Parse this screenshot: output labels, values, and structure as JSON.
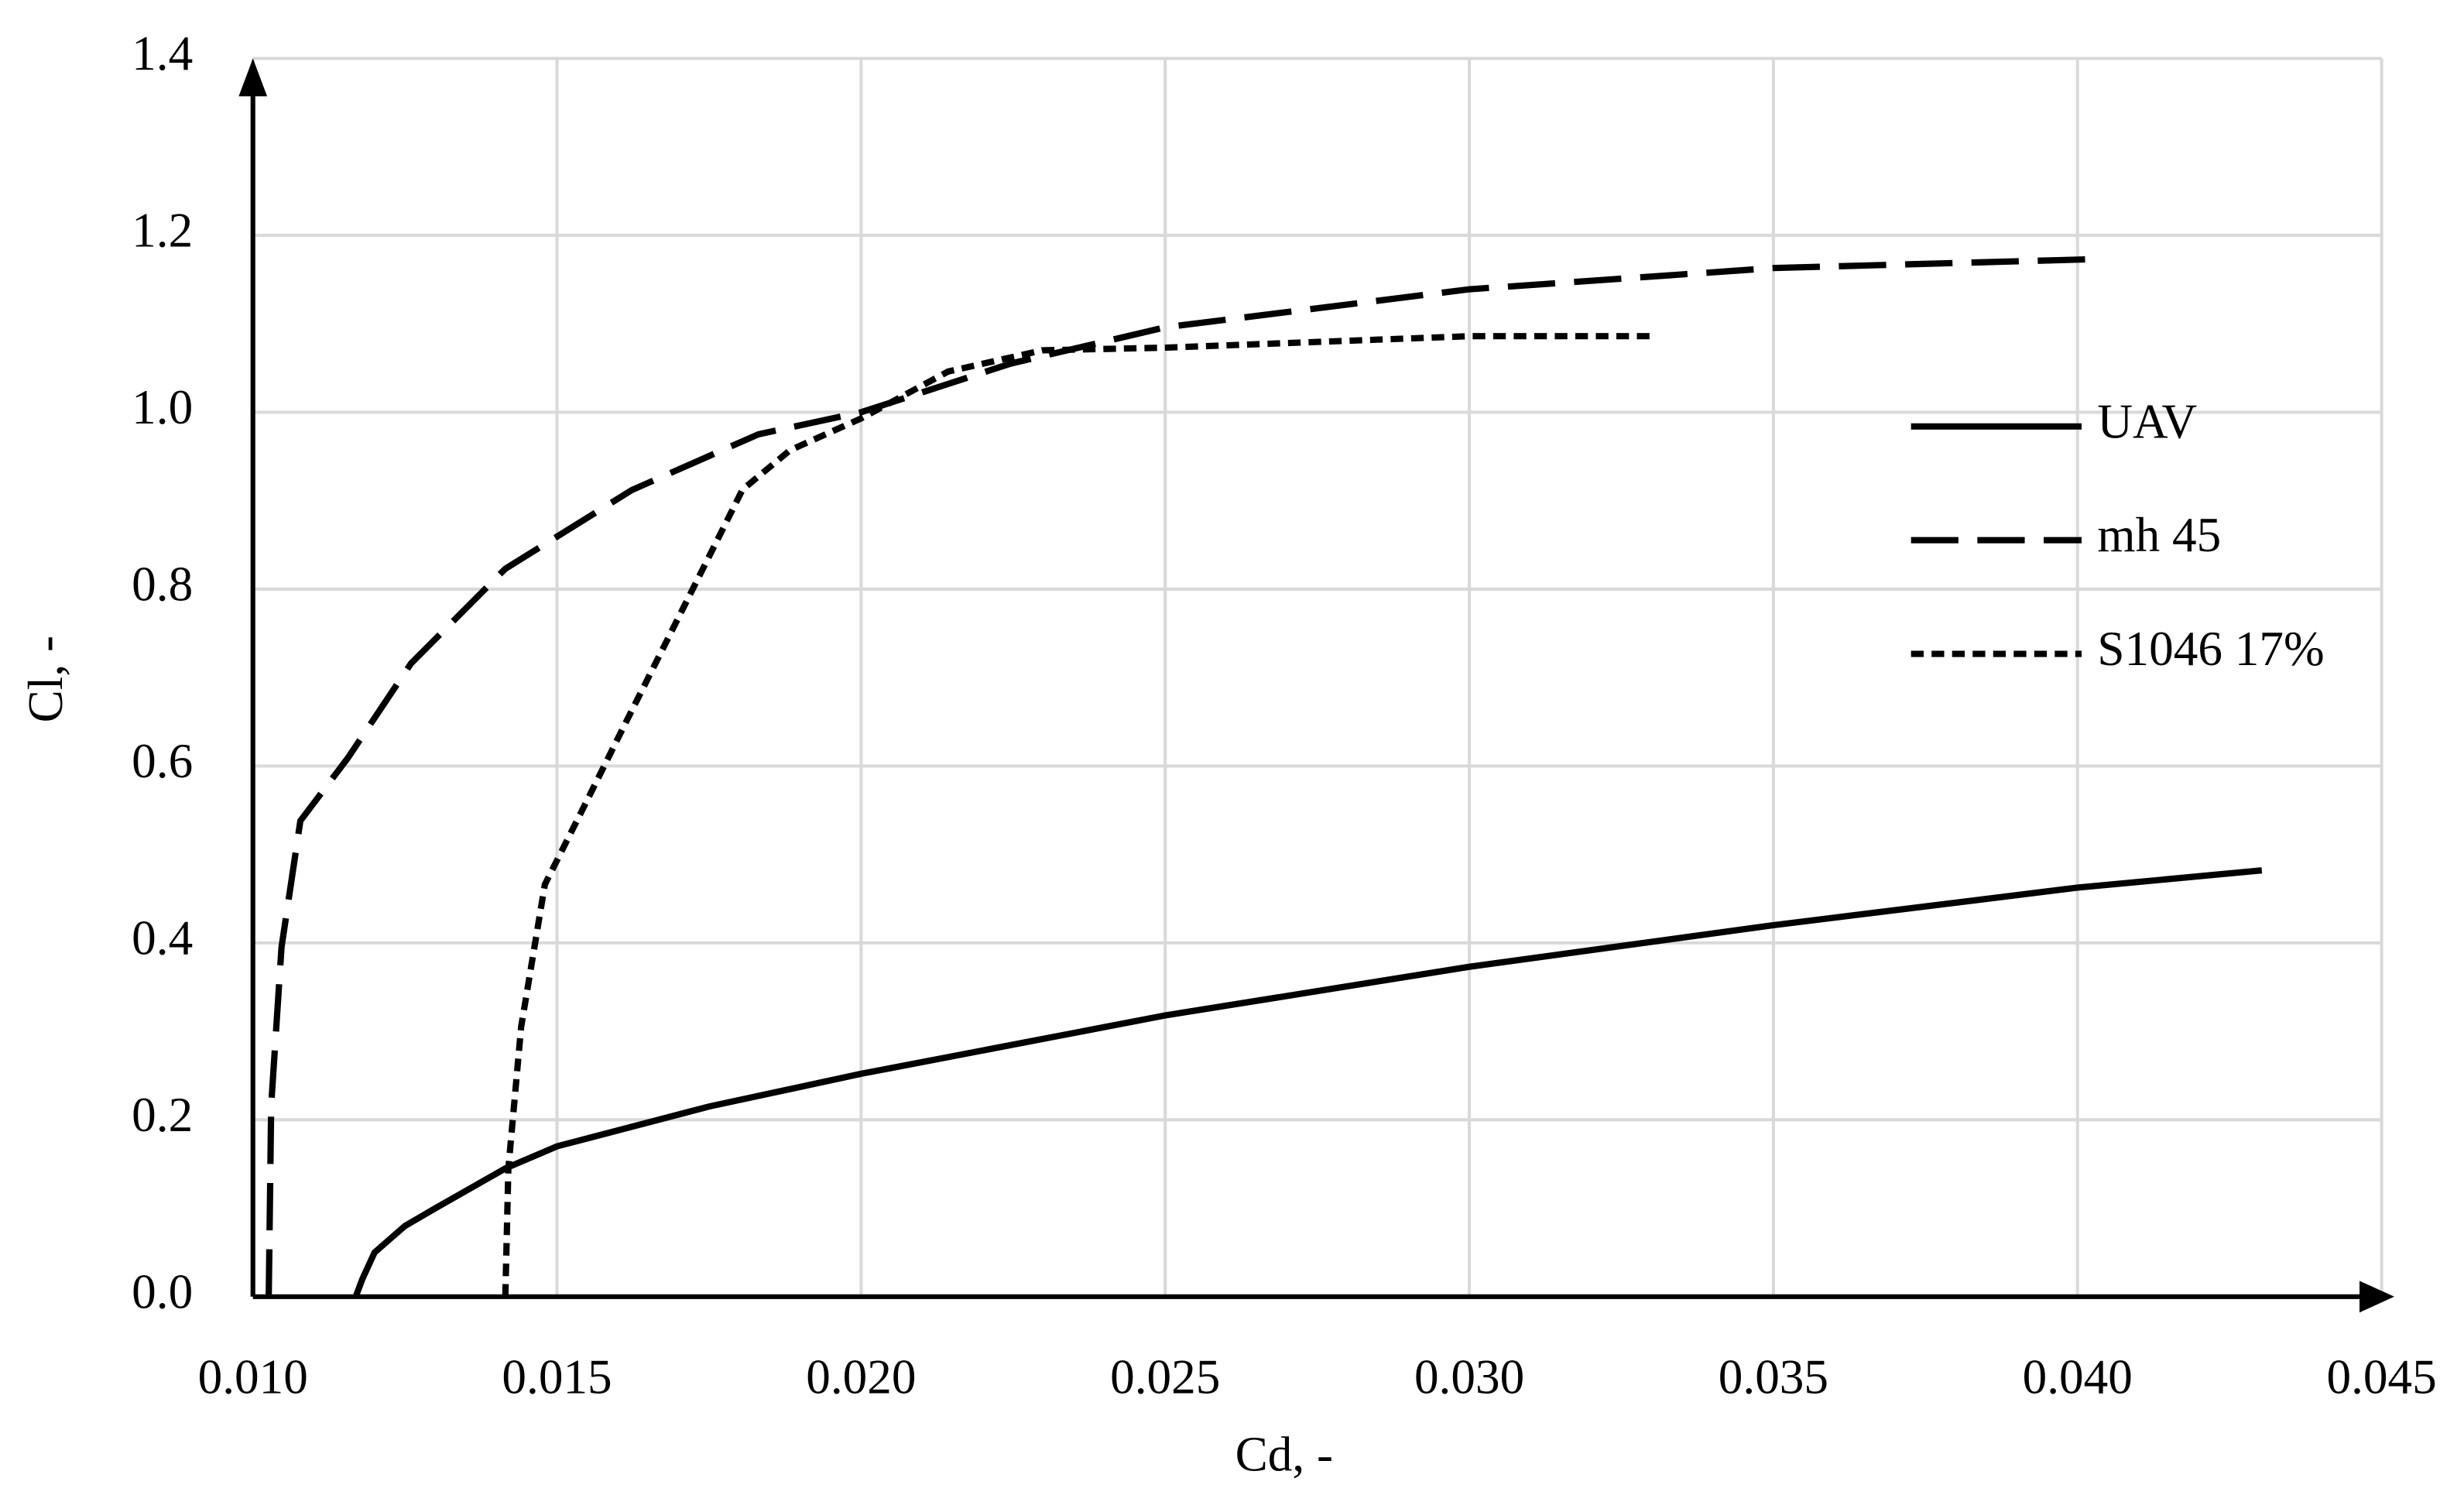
{
  "chart_data": {
    "type": "line",
    "xlabel": "Cd, -",
    "ylabel": "Cl, -",
    "xlim": [
      0.01,
      0.045
    ],
    "ylim": [
      0,
      1.4
    ],
    "xticks": [
      {
        "value": 0.01,
        "label": "0.010"
      },
      {
        "value": 0.015,
        "label": "0.015"
      },
      {
        "value": 0.02,
        "label": "0.020"
      },
      {
        "value": 0.025,
        "label": "0.025"
      },
      {
        "value": 0.03,
        "label": "0.030"
      },
      {
        "value": 0.035,
        "label": "0.035"
      },
      {
        "value": 0.04,
        "label": "0.040"
      },
      {
        "value": 0.045,
        "label": "0.045"
      }
    ],
    "yticks": [
      {
        "value": 0,
        "label": "0.0"
      },
      0.2,
      0.4,
      0.6,
      0.8,
      {
        "value": 1,
        "label": "1.0"
      },
      1.2,
      1.4
    ],
    "grid": true,
    "legend": "right",
    "series": [
      {
        "name": "UAV",
        "color": "#000000",
        "line_style": "solid",
        "x": [
          0.01169,
          0.0118,
          0.012,
          0.0125,
          0.013,
          0.01415,
          0.015,
          0.0175,
          0.02,
          0.025,
          0.03,
          0.035,
          0.04,
          0.04303
        ],
        "y": [
          0,
          0.02,
          0.05,
          0.08,
          0.1,
          0.145,
          0.17,
          0.215,
          0.252,
          0.318,
          0.373,
          0.42,
          0.4625,
          0.482
        ]
      },
      {
        "name": "mh 45",
        "color": "#000000",
        "line_style": "long-dash",
        "x": [
          0.01026,
          0.0103,
          0.01047,
          0.01078,
          0.01156,
          0.0126,
          0.01415,
          0.01623,
          0.01831,
          0.02,
          0.02246,
          0.025,
          0.03,
          0.035,
          0.04025
        ],
        "y": [
          0,
          0.216,
          0.395,
          0.538,
          0.609,
          0.716,
          0.823,
          0.912,
          0.975,
          1.0,
          1.055,
          1.096,
          1.139,
          1.163,
          1.173
        ]
      },
      {
        "name": "S1046 17%",
        "color": "#000000",
        "line_style": "short-dash",
        "x": [
          0.01415,
          0.0142,
          0.01441,
          0.0148,
          0.01545,
          0.0161,
          0.01675,
          0.01753,
          0.01805,
          0.01883,
          0.02,
          0.02143,
          0.02298,
          0.025,
          0.03,
          0.03298
        ],
        "y": [
          0,
          0.145,
          0.305,
          0.466,
          0.555,
          0.645,
          0.734,
          0.841,
          0.9125,
          0.957,
          0.993,
          1.046,
          1.07,
          1.073,
          1.086,
          1.086
        ]
      }
    ]
  }
}
